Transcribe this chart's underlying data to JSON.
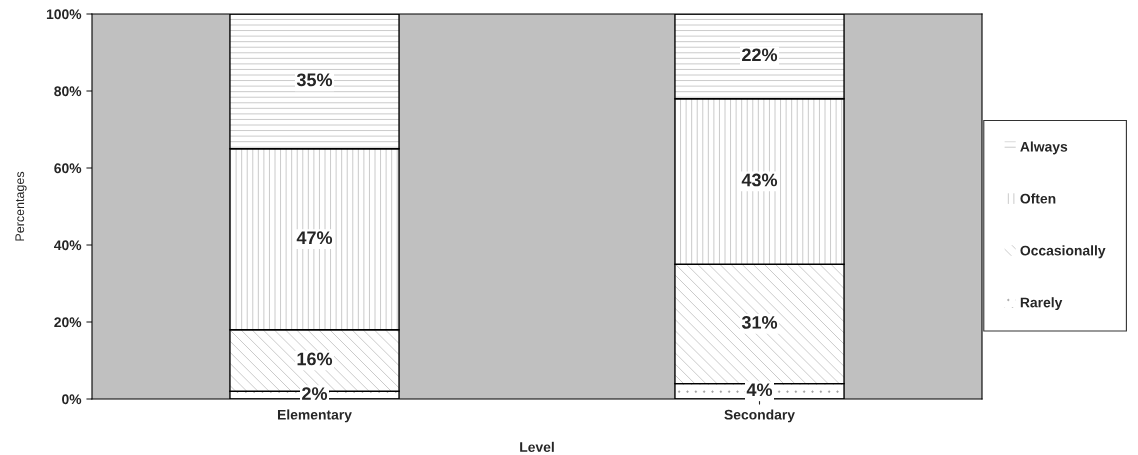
{
  "chart_data": {
    "type": "bar",
    "stacked": true,
    "xlabel": "Level",
    "ylabel": "Percentages",
    "categories": [
      "Elementary",
      "Secondary"
    ],
    "series": [
      {
        "name": "Rarely",
        "color": "#ffffff",
        "values": [
          2,
          4
        ]
      },
      {
        "name": "Occasionally",
        "color": "#ffffff",
        "values": [
          16,
          31
        ]
      },
      {
        "name": "Often",
        "color": "#ffffff",
        "values": [
          47,
          43
        ]
      },
      {
        "name": "Always",
        "color": "#ffffff",
        "values": [
          35,
          22
        ]
      }
    ],
    "value_labels": [
      [
        "2%",
        "4%"
      ],
      [
        "16%",
        "31%"
      ],
      [
        "47%",
        "43%"
      ],
      [
        "35%",
        "22%"
      ]
    ],
    "ylim": [
      0,
      100
    ],
    "yticks": [
      {
        "value": 0,
        "label": "0%"
      },
      {
        "value": 20,
        "label": "20%"
      },
      {
        "value": 40,
        "label": "40%"
      },
      {
        "value": 60,
        "label": "60%"
      },
      {
        "value": 80,
        "label": "80%"
      },
      {
        "value": 100,
        "label": "100%"
      }
    ],
    "grid": false,
    "legend": "right"
  }
}
